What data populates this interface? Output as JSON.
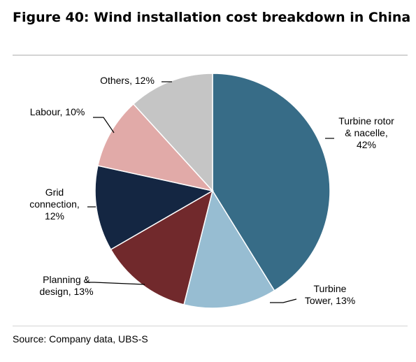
{
  "title": "Figure 40: Wind installation cost breakdown in China",
  "source": "Source: Company data, UBS-S",
  "chart_data": {
    "type": "pie",
    "start_angle_deg": 0,
    "direction": "clockwise",
    "slices": [
      {
        "label": "Turbine rotor & nacelle",
        "value": 42,
        "color": "#376C87",
        "label_lines": [
          "Turbine rotor",
          "& nacelle,",
          "42%"
        ]
      },
      {
        "label": "Turbine Tower",
        "value": 13,
        "color": "#97BDD2",
        "label_lines": [
          "Turbine",
          "Tower, 13%"
        ]
      },
      {
        "label": "Planning & design",
        "value": 13,
        "color": "#71292C",
        "label_lines": [
          "Planning &",
          "design, 13%"
        ]
      },
      {
        "label": "Grid connection",
        "value": 12,
        "color": "#142642",
        "label_lines": [
          "Grid",
          "connection,",
          "12%"
        ]
      },
      {
        "label": "Labour",
        "value": 10,
        "color": "#E1AAA8",
        "label_lines": [
          "Labour, 10%"
        ]
      },
      {
        "label": "Others",
        "value": 12,
        "color": "#C5C5C5",
        "label_lines": [
          "Others, 12%"
        ]
      }
    ]
  }
}
